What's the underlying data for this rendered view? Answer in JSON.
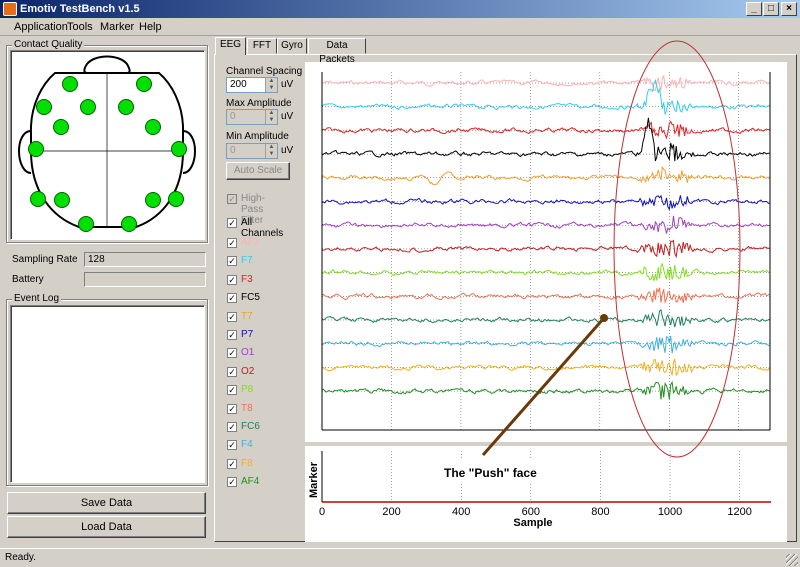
{
  "window": {
    "title": "Emotiv TestBench v1.5",
    "min": "_",
    "max": "□",
    "close": "×"
  },
  "menu": [
    "Application",
    "Tools",
    "Marker",
    "Help"
  ],
  "contact_quality": {
    "label": "Contact Quality",
    "dot_color": "#00e000"
  },
  "sampling_rate": {
    "label": "Sampling Rate",
    "value": "128"
  },
  "battery": {
    "label": "Battery"
  },
  "event_log": {
    "label": "Event Log"
  },
  "buttons": {
    "save": "Save Data",
    "load": "Load Data"
  },
  "tabs": [
    "EEG",
    "FFT",
    "Gyro",
    "Data Packets"
  ],
  "controls": {
    "channel_spacing": {
      "label": "Channel Spacing",
      "value": "200",
      "unit": "uV"
    },
    "max_amplitude": {
      "label": "Max Amplitude",
      "value": "0",
      "unit": "uV"
    },
    "min_amplitude": {
      "label": "Min Amplitude",
      "value": "0",
      "unit": "uV"
    },
    "auto_scale": "Auto Scale",
    "high_pass": "High-Pass Filter",
    "all_channels": "All Channels"
  },
  "channels": [
    {
      "name": "AF3",
      "color": "#ffb0b0"
    },
    {
      "name": "F7",
      "color": "#33ccee"
    },
    {
      "name": "F3",
      "color": "#e02020"
    },
    {
      "name": "FC5",
      "color": "#000000"
    },
    {
      "name": "T7",
      "color": "#f0a030"
    },
    {
      "name": "P7",
      "color": "#1010c0"
    },
    {
      "name": "O1",
      "color": "#a040c0"
    },
    {
      "name": "O2",
      "color": "#c02020"
    },
    {
      "name": "P8",
      "color": "#80e020"
    },
    {
      "name": "T8",
      "color": "#f07050"
    },
    {
      "name": "FC6",
      "color": "#208060"
    },
    {
      "name": "F4",
      "color": "#40b0e0"
    },
    {
      "name": "F8",
      "color": "#f0b020"
    },
    {
      "name": "AF4",
      "color": "#209020"
    }
  ],
  "marker_chart": {
    "ylabel": "Marker",
    "xlabel": "Sample",
    "ticks": [
      "0",
      "200",
      "400",
      "600",
      "800",
      "1000",
      "1200"
    ]
  },
  "annotation": {
    "text": "The \"Push\" face"
  },
  "status": "Ready."
}
